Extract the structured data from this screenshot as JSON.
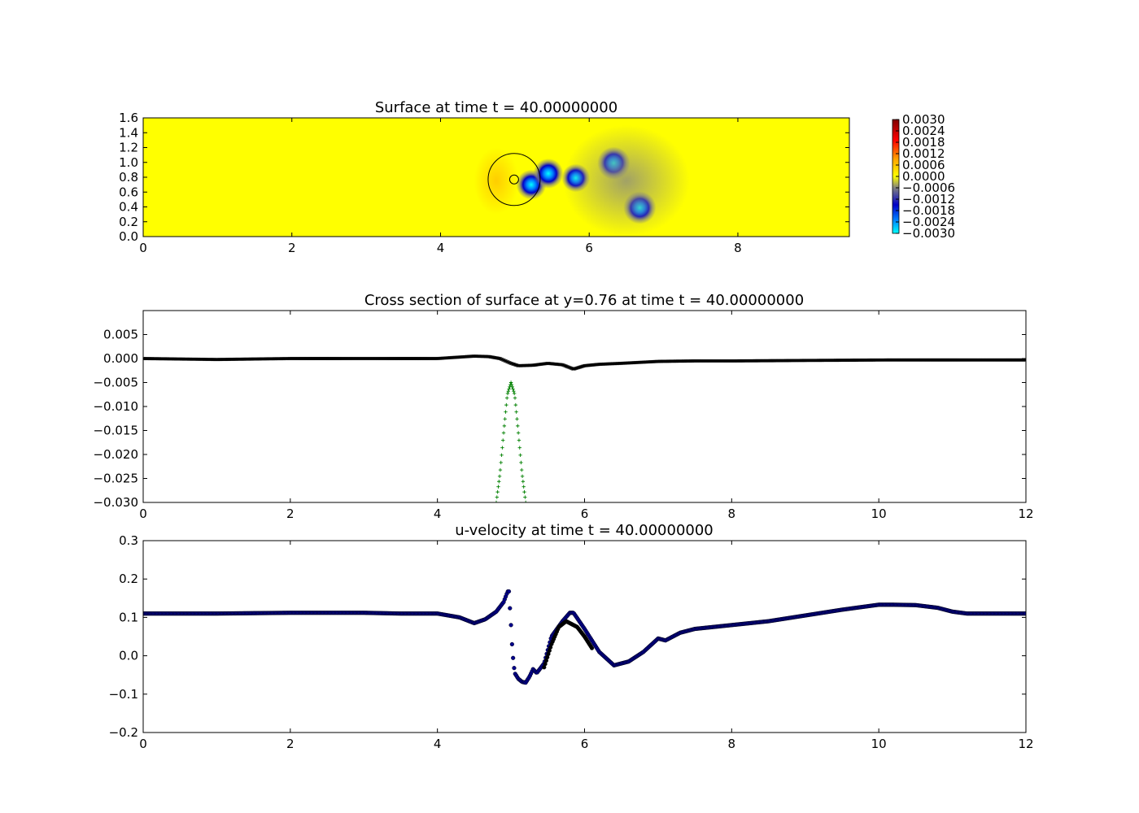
{
  "chart_data": [
    {
      "type": "heatmap",
      "title": "Surface at time t =    40.00000000",
      "xlim": [
        0,
        9.5
      ],
      "ylim": [
        0,
        1.6
      ],
      "xticks": [
        "0",
        "2",
        "4",
        "6",
        "8"
      ],
      "yticks": [
        "0.0",
        "0.2",
        "0.4",
        "0.6",
        "0.8",
        "1.0",
        "1.2",
        "1.4",
        "1.6"
      ],
      "grid": false,
      "colorbar": {
        "range": [
          -0.003,
          0.003
        ],
        "ticks": [
          "0.0030",
          "0.0024",
          "0.0018",
          "0.0012",
          "0.0006",
          "0.0000",
          "−0.0006",
          "−0.0012",
          "−0.0018",
          "−0.0024",
          "−0.0030"
        ],
        "colors": {
          "max": "#800000",
          "upper": "#ff0000",
          "mid_high": "#ffa500",
          "zero": "#ffff00",
          "neg_low": "#808080",
          "neg_mid": "#0000c8",
          "neg_high": "#0080ff",
          "min": "#00ffff"
        }
      },
      "background_level": 0.0,
      "features": [
        {
          "kind": "vortex",
          "x": 5.22,
          "y": 0.7,
          "value": -0.0024
        },
        {
          "kind": "vortex",
          "x": 5.45,
          "y": 0.85,
          "value": -0.0024
        },
        {
          "kind": "vortex",
          "x": 5.82,
          "y": 0.79,
          "value": -0.002
        },
        {
          "kind": "vortex",
          "x": 6.33,
          "y": 0.99,
          "value": -0.003
        },
        {
          "kind": "vortex",
          "x": 6.68,
          "y": 0.39,
          "value": -0.003
        },
        {
          "kind": "depression",
          "x": 6.5,
          "y": 0.75,
          "value": -0.0008
        },
        {
          "kind": "bump",
          "x": 4.75,
          "y": 0.75,
          "value": 0.0006
        }
      ],
      "circles": [
        {
          "cx": 4.99,
          "cy": 0.77,
          "r": 0.35
        },
        {
          "cx": 4.99,
          "cy": 0.77,
          "r": 0.06
        }
      ]
    },
    {
      "type": "line",
      "title": "Cross section of surface at y=0.76 at time t =    40.00000000",
      "xlim": [
        0,
        12
      ],
      "ylim": [
        -0.03,
        0.01
      ],
      "xticks": [
        "0",
        "2",
        "4",
        "6",
        "8",
        "10",
        "12"
      ],
      "yticks": [
        "−0.030",
        "−0.025",
        "−0.020",
        "−0.015",
        "−0.010",
        "−0.005",
        "0.000",
        "0.005"
      ],
      "grid": false,
      "series": [
        {
          "color": "#000000",
          "marker": "x",
          "x": [
            0,
            1,
            2,
            2.9,
            3.5,
            4.0,
            4.3,
            4.5,
            4.7,
            4.85,
            5.0,
            5.1,
            5.3,
            5.5,
            5.7,
            5.85,
            6.0,
            6.2,
            6.5,
            7.0,
            7.5,
            8.0,
            9.0,
            10.1,
            11.0,
            12.0
          ],
          "y": [
            0.0,
            -0.0002,
            0.0,
            0.0,
            0.0,
            0.0,
            0.0003,
            0.0005,
            0.0004,
            0.0,
            -0.001,
            -0.0015,
            -0.0014,
            -0.001,
            -0.0013,
            -0.0022,
            -0.0015,
            -0.0012,
            -0.001,
            -0.0006,
            -0.0005,
            -0.0005,
            -0.0004,
            -0.0003,
            -0.0003,
            -0.0003
          ]
        },
        {
          "color": "#008000",
          "marker": "+",
          "x": [
            4.8,
            4.85,
            4.9,
            4.95,
            5.0,
            5.05,
            5.1,
            5.15,
            5.2
          ],
          "y": [
            -0.03,
            -0.024,
            -0.0155,
            -0.0075,
            -0.005,
            -0.0075,
            -0.0155,
            -0.024,
            -0.03
          ]
        }
      ]
    },
    {
      "type": "scatter",
      "title": "u-velocity at time t =    40.00000000",
      "xlim": [
        0,
        12
      ],
      "ylim": [
        -0.2,
        0.3
      ],
      "xticks": [
        "0",
        "2",
        "4",
        "6",
        "8",
        "10",
        "12"
      ],
      "yticks": [
        "−0.2",
        "−0.1",
        "0.0",
        "0.1",
        "0.2",
        "0.3"
      ],
      "grid": false,
      "series": [
        {
          "color": "#00008b",
          "marker": "o",
          "x": [
            0,
            1,
            2,
            3,
            3.5,
            4.0,
            4.3,
            4.5,
            4.65,
            4.8,
            4.9,
            4.95,
            4.97,
            5.0,
            5.02,
            5.05,
            5.1,
            5.15,
            5.2,
            5.25,
            5.3,
            5.35,
            5.45,
            5.55,
            5.7,
            5.8,
            5.85,
            6.0,
            6.2,
            6.4,
            6.6,
            6.8,
            7.0,
            7.1,
            7.3,
            7.5,
            8.0,
            8.5,
            9.0,
            9.5,
            10.0,
            10.2,
            10.5,
            10.8,
            11.0,
            11.2,
            12.0
          ],
          "y": [
            0.11,
            0.11,
            0.112,
            0.112,
            0.11,
            0.11,
            0.1,
            0.085,
            0.095,
            0.115,
            0.14,
            0.165,
            0.172,
            0.08,
            0.01,
            -0.045,
            -0.06,
            -0.068,
            -0.07,
            -0.055,
            -0.035,
            -0.045,
            -0.02,
            0.05,
            0.09,
            0.112,
            0.112,
            0.07,
            0.01,
            -0.025,
            -0.015,
            0.01,
            0.045,
            0.04,
            0.06,
            0.07,
            0.08,
            0.09,
            0.105,
            0.12,
            0.133,
            0.133,
            0.132,
            0.125,
            0.115,
            0.11,
            0.11
          ]
        },
        {
          "color": "#000000",
          "marker": "o",
          "x": [
            5.45,
            5.55,
            5.65,
            5.75,
            5.8,
            5.9,
            6.0,
            6.1
          ],
          "y": [
            -0.03,
            0.03,
            0.075,
            0.09,
            0.085,
            0.075,
            0.05,
            0.02
          ]
        }
      ]
    }
  ]
}
